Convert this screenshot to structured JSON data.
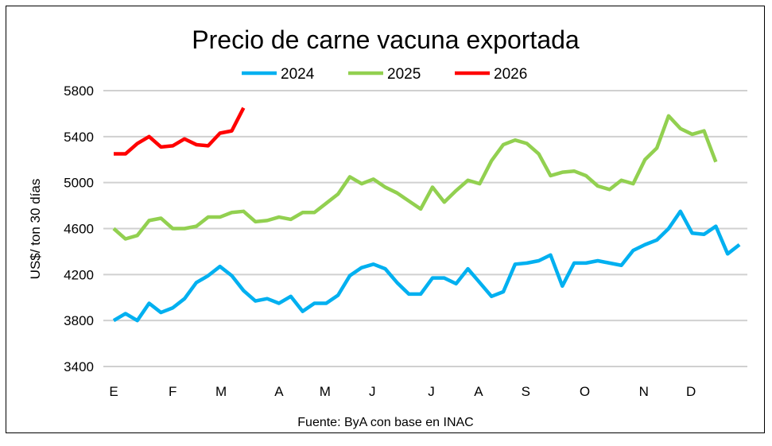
{
  "chart_data": {
    "type": "line",
    "title": "Precio de carne vacuna exportada",
    "ylabel": "US$/ ton 30 días",
    "xlabel": "",
    "source": "Fuente: ByA con base en INAC",
    "ylim": [
      3400,
      5800
    ],
    "y_ticks": [
      3400,
      3800,
      4200,
      4600,
      5000,
      5400,
      5800
    ],
    "x_tick_labels": [
      "E",
      "F",
      "M",
      "A",
      "M",
      "J",
      "J",
      "A",
      "S",
      "O",
      "N",
      "D"
    ],
    "grid": true,
    "legend_position": "top",
    "series": [
      {
        "name": "2024",
        "color": "#00B0F0",
        "values": [
          3800,
          3860,
          3800,
          3950,
          3870,
          3910,
          3990,
          4130,
          4190,
          4270,
          4190,
          4060,
          3970,
          3990,
          3950,
          4010,
          3880,
          3950,
          3950,
          4020,
          4190,
          4260,
          4290,
          4250,
          4130,
          4030,
          4030,
          4170,
          4170,
          4120,
          4250,
          4130,
          4010,
          4050,
          4290,
          4300,
          4320,
          4370,
          4100,
          4300,
          4300,
          4320,
          4300,
          4280,
          4410,
          4460,
          4500,
          4600,
          4750,
          4560,
          4550,
          4620,
          4380,
          4460
        ]
      },
      {
        "name": "2025",
        "color": "#92D050",
        "values": [
          4600,
          4510,
          4540,
          4670,
          4690,
          4600,
          4600,
          4620,
          4700,
          4700,
          4740,
          4750,
          4660,
          4670,
          4700,
          4680,
          4740,
          4740,
          4820,
          4900,
          5050,
          4990,
          5030,
          4960,
          4910,
          4840,
          4770,
          4960,
          4830,
          4930,
          5020,
          4990,
          5190,
          5330,
          5370,
          5340,
          5250,
          5060,
          5090,
          5100,
          5060,
          4970,
          4940,
          5020,
          4990,
          5200,
          5300,
          5580,
          5470,
          5420,
          5450,
          5180
        ]
      },
      {
        "name": "2026",
        "color": "#FF0000",
        "values": [
          5250,
          5250,
          5340,
          5400,
          5310,
          5320,
          5380,
          5330,
          5320,
          5430,
          5450,
          5650
        ]
      }
    ]
  }
}
